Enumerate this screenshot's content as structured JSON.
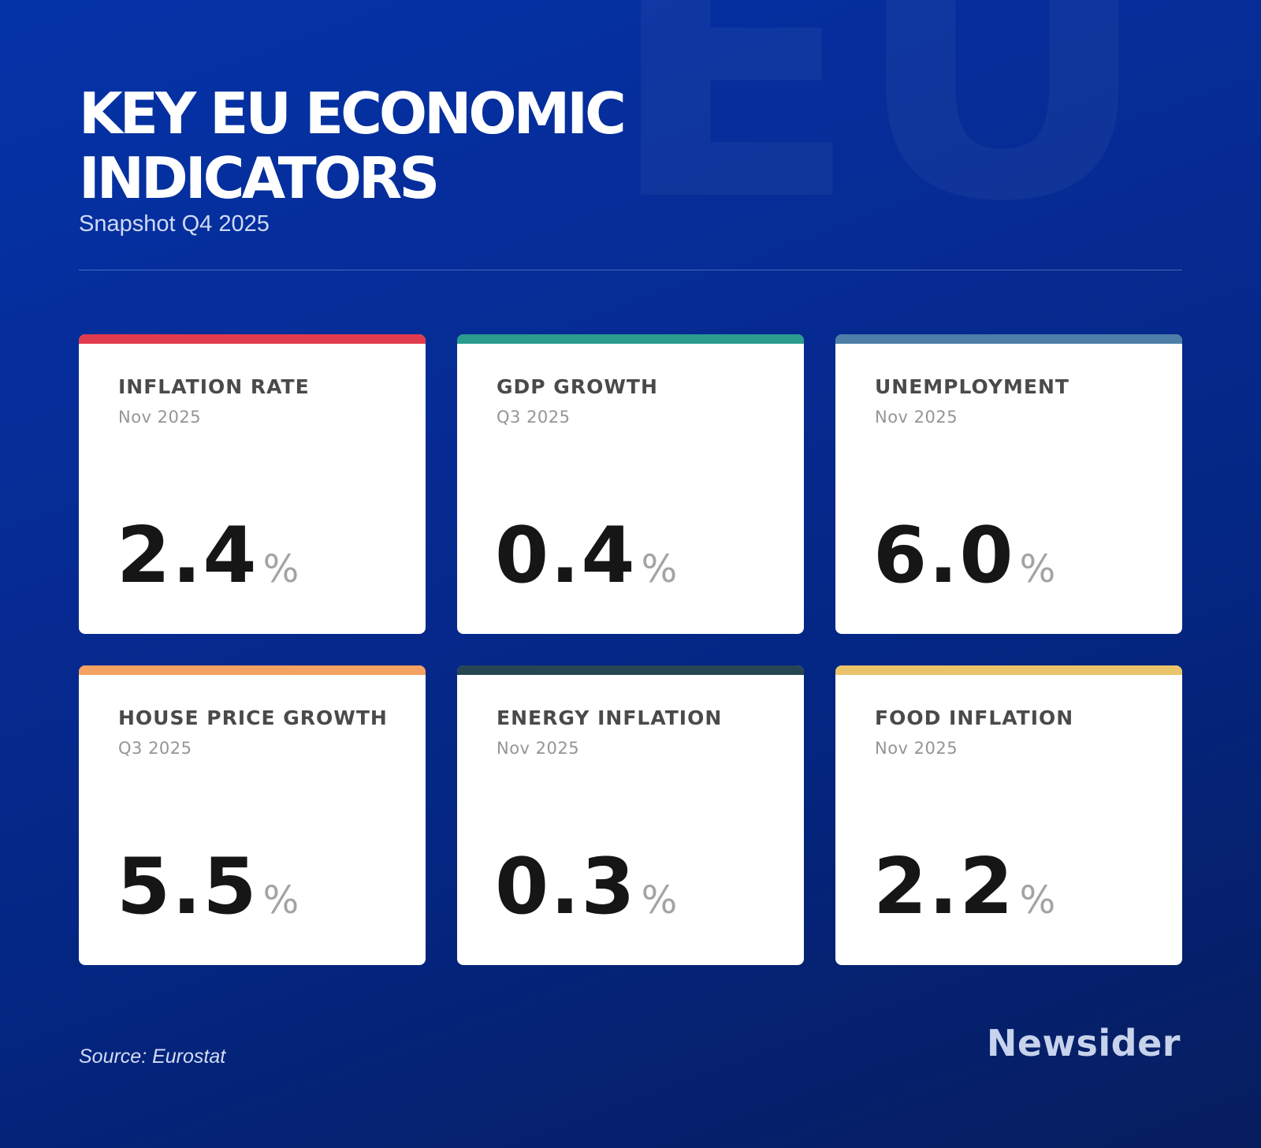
{
  "watermark": "EU",
  "header": {
    "title": "KEY EU ECONOMIC INDICATORS",
    "subtitle": "Snapshot Q4 2025"
  },
  "cards": [
    {
      "label": "INFLATION RATE",
      "date": "Nov 2025",
      "value": "2.4",
      "unit": "%",
      "accent": "#e33b4e"
    },
    {
      "label": "GDP GROWTH",
      "date": "Q3 2025",
      "value": "0.4",
      "unit": "%",
      "accent": "#2a9d8f"
    },
    {
      "label": "UNEMPLOYMENT",
      "date": "Nov 2025",
      "value": "6.0",
      "unit": "%",
      "accent": "#4d7fa8"
    },
    {
      "label": "HOUSE PRICE GROWTH",
      "date": "Q3 2025",
      "value": "5.5",
      "unit": "%",
      "accent": "#f4a261"
    },
    {
      "label": "ENERGY INFLATION",
      "date": "Nov 2025",
      "value": "0.3",
      "unit": "%",
      "accent": "#264653"
    },
    {
      "label": "FOOD INFLATION",
      "date": "Nov 2025",
      "value": "2.2",
      "unit": "%",
      "accent": "#e9c46a"
    }
  ],
  "footer": {
    "source": "Source: Eurostat",
    "brand": "Newsider"
  }
}
